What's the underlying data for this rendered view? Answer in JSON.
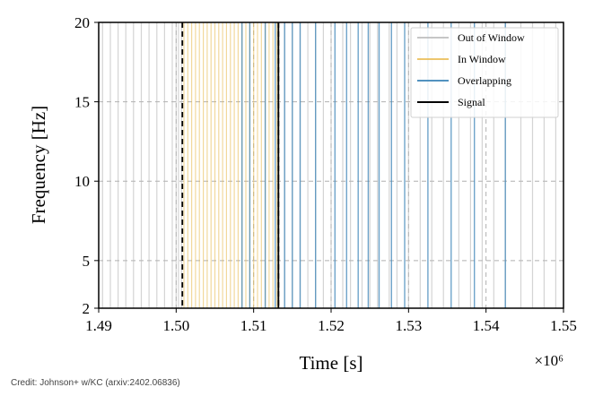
{
  "chart_data": {
    "type": "line",
    "xlabel": "Time [s]",
    "ylabel": "Frequency [Hz]",
    "x_multiplier": "×10⁶",
    "xlim": [
      1.49,
      1.55
    ],
    "ylim": [
      2,
      20
    ],
    "x_ticks": [
      "1.49",
      "1.50",
      "1.51",
      "1.52",
      "1.53",
      "1.54",
      "1.55"
    ],
    "y_ticks": [
      "2",
      "5",
      "10",
      "15",
      "20"
    ],
    "grid": "dashed",
    "legend_position": "top-right",
    "colors": {
      "out_of_window": "#b8b8b8",
      "in_window": "#e8b84a",
      "overlapping": "#3f86b8",
      "signal": "#000000"
    },
    "window": {
      "start": 1.5008,
      "end": 1.5132
    },
    "series": [
      {
        "name": "Out of Window",
        "merger_times": [
          1.4905,
          1.4915,
          1.4925,
          1.4935,
          1.4945,
          1.4955,
          1.4965,
          1.4975,
          1.4985,
          1.4995,
          1.5,
          1.5003,
          1.5007,
          1.514,
          1.515,
          1.516,
          1.517,
          1.518,
          1.519,
          1.52,
          1.5215,
          1.5225,
          1.524,
          1.525,
          1.526,
          1.5275,
          1.5285,
          1.53,
          1.5315,
          1.533,
          1.5345,
          1.5365,
          1.538,
          1.5395,
          1.541,
          1.5425,
          1.5445,
          1.546,
          1.5475,
          1.549,
          1.55
        ]
      },
      {
        "name": "In Window",
        "merger_times": [
          1.501,
          1.5015,
          1.502,
          1.5025,
          1.503,
          1.5035,
          1.504,
          1.5045,
          1.505,
          1.5055,
          1.506,
          1.5065,
          1.507,
          1.5075,
          1.508,
          1.5085,
          1.509,
          1.5095,
          1.51,
          1.5105,
          1.511,
          1.5115,
          1.512,
          1.5125,
          1.513
        ]
      },
      {
        "name": "Overlapping",
        "merger_times": [
          1.5085,
          1.5095,
          1.5115,
          1.5128,
          1.514,
          1.515,
          1.516,
          1.518,
          1.5205,
          1.522,
          1.5235,
          1.5248,
          1.5262,
          1.5278,
          1.5295,
          1.5325,
          1.5355,
          1.5385,
          1.5425
        ]
      },
      {
        "name": "Signal",
        "merger_times": [
          1.5132
        ]
      }
    ]
  },
  "credit": "Credit: Johnson+ w/KC (arxiv:2402.06836)"
}
